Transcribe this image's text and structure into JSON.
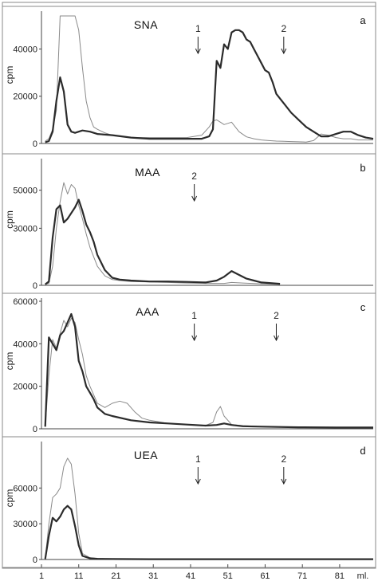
{
  "chart_data": {
    "type": "line",
    "x_tick_labels": [
      "1",
      "11",
      "21",
      "31",
      "41",
      "51",
      "61",
      "71",
      "81"
    ],
    "x_unit_label": "ml.",
    "xlim": [
      1,
      90
    ],
    "panels": [
      {
        "letter": "a",
        "title": "SNA",
        "ylabel": "cpm",
        "yticks": [
          0,
          20000,
          40000
        ],
        "ylim": [
          0,
          54000
        ],
        "arrows": [
          {
            "label": "1",
            "x": 43
          },
          {
            "label": "2",
            "x": 66
          }
        ],
        "series": [
          {
            "style": "thin",
            "x": [
              2,
              3,
              4,
              5,
              6,
              7,
              8,
              9,
              10,
              11,
              12,
              13,
              14,
              15,
              16,
              18,
              20,
              25,
              30,
              35,
              40,
              44,
              46,
              47,
              48,
              49,
              50,
              51,
              52,
              54,
              56,
              58,
              60,
              62,
              64,
              66,
              68,
              70,
              72,
              74,
              76,
              78,
              80,
              82,
              84,
              86,
              88,
              90
            ],
            "y": [
              1000,
              2000,
              6000,
              14000,
              54000,
              54000,
              54000,
              54000,
              54000,
              48000,
              32000,
              18000,
              11000,
              7000,
              6000,
              4500,
              3500,
              2500,
              2500,
              2500,
              2500,
              3500,
              7000,
              9500,
              10000,
              9000,
              8000,
              8500,
              9000,
              5000,
              2800,
              2000,
              1500,
              1200,
              1000,
              900,
              800,
              700,
              600,
              1200,
              4000,
              3500,
              2500,
              2000,
              2000,
              1500,
              1500,
              1500
            ]
          },
          {
            "style": "bold",
            "x": [
              2,
              3,
              4,
              5,
              6,
              7,
              8,
              9,
              10,
              11,
              12,
              14,
              16,
              20,
              25,
              30,
              35,
              40,
              44,
              46,
              47,
              48,
              49,
              50,
              51,
              52,
              53,
              54,
              55,
              56,
              57,
              58,
              59,
              60,
              61,
              62,
              63,
              64,
              66,
              68,
              70,
              72,
              74,
              76,
              78,
              80,
              82,
              84,
              86,
              88,
              90
            ],
            "y": [
              500,
              1000,
              5000,
              18000,
              28000,
              22000,
              8000,
              5000,
              4500,
              5000,
              5500,
              5000,
              4000,
              3500,
              2500,
              2000,
              2000,
              2000,
              2000,
              3000,
              6000,
              35000,
              32000,
              42000,
              40000,
              47000,
              48000,
              48000,
              47000,
              44000,
              43000,
              40000,
              37000,
              34000,
              31000,
              30000,
              26000,
              21000,
              17000,
              13000,
              10000,
              7000,
              5000,
              3000,
              3000,
              4000,
              5000,
              5000,
              3500,
              2500,
              2000
            ]
          }
        ]
      },
      {
        "letter": "b",
        "title": "MAA",
        "ylabel": "cpm",
        "yticks": [
          0,
          30000,
          50000
        ],
        "ylim": [
          0,
          62000
        ],
        "arrows": [
          {
            "label": "2",
            "x": 42
          }
        ],
        "series": [
          {
            "style": "thin",
            "x": [
              2,
              3,
              4,
              5,
              6,
              7,
              8,
              9,
              10,
              11,
              12,
              13,
              14,
              16,
              18,
              20,
              22,
              25,
              30,
              35,
              40,
              45,
              50,
              52,
              55,
              60,
              65
            ],
            "y": [
              500,
              1000,
              10000,
              30000,
              44000,
              54000,
              48000,
              53000,
              51000,
              42000,
              35000,
              27000,
              20000,
              10000,
              5000,
              3000,
              2500,
              2000,
              1800,
              1500,
              1200,
              1000,
              1000,
              1500,
              1200,
              800,
              500
            ]
          },
          {
            "style": "bold",
            "x": [
              2,
              3,
              4,
              5,
              6,
              7,
              8,
              9,
              10,
              11,
              12,
              13,
              14,
              15,
              16,
              18,
              20,
              22,
              25,
              30,
              35,
              40,
              45,
              48,
              50,
              52,
              54,
              56,
              58,
              60,
              65
            ],
            "y": [
              500,
              2000,
              25000,
              40000,
              42000,
              33000,
              35000,
              38000,
              41000,
              45000,
              39000,
              32000,
              28000,
              23000,
              16000,
              8000,
              4000,
              3000,
              2500,
              2000,
              2000,
              1800,
              1500,
              2500,
              4500,
              7500,
              5500,
              3500,
              2500,
              1500,
              800
            ]
          }
        ]
      },
      {
        "letter": "c",
        "title": "AAA",
        "ylabel": "cpm",
        "yticks": [
          0,
          20000,
          40000,
          60000
        ],
        "ylim": [
          0,
          60000
        ],
        "arrows": [
          {
            "label": "1",
            "x": 42
          },
          {
            "label": "2",
            "x": 64
          }
        ],
        "series": [
          {
            "style": "thin",
            "x": [
              2,
              3,
              4,
              5,
              6,
              7,
              8,
              9,
              10,
              11,
              12,
              13,
              14,
              16,
              18,
              20,
              22,
              24,
              26,
              28,
              30,
              35,
              40,
              45,
              47,
              48,
              49,
              50,
              52,
              55,
              60,
              70,
              80,
              90
            ],
            "y": [
              1000,
              25000,
              42000,
              38000,
              45000,
              51000,
              48000,
              52000,
              50000,
              42000,
              35000,
              25000,
              20000,
              12000,
              10000,
              12000,
              13000,
              12000,
              8000,
              5000,
              4000,
              2500,
              2000,
              1500,
              3000,
              8000,
              10500,
              6000,
              2000,
              1500,
              1000,
              800,
              700,
              700
            ]
          },
          {
            "style": "bold",
            "x": [
              2,
              3,
              4,
              5,
              6,
              7,
              8,
              9,
              10,
              11,
              12,
              13,
              14,
              15,
              16,
              18,
              20,
              25,
              30,
              35,
              40,
              45,
              48,
              50,
              52,
              55,
              60,
              70,
              80,
              90
            ],
            "y": [
              1000,
              43000,
              40000,
              37000,
              44000,
              46000,
              50000,
              54000,
              48000,
              32000,
              27000,
              20000,
              17000,
              14000,
              10000,
              7000,
              6000,
              4000,
              3000,
              2500,
              2000,
              1500,
              1800,
              2500,
              1800,
              1200,
              1000,
              700,
              600,
              600
            ]
          }
        ]
      },
      {
        "letter": "d",
        "title": "UEA",
        "ylabel": "cpm",
        "yticks": [
          0,
          30000,
          60000
        ],
        "ylim": [
          0,
          95000
        ],
        "arrows": [
          {
            "label": "1",
            "x": 43
          },
          {
            "label": "2",
            "x": 66
          }
        ],
        "series": [
          {
            "style": "thin",
            "x": [
              2,
              3,
              4,
              5,
              6,
              7,
              8,
              9,
              10,
              11,
              12,
              14,
              16,
              20,
              30,
              50,
              70,
              90
            ],
            "y": [
              500,
              30000,
              52000,
              55000,
              60000,
              78000,
              85000,
              80000,
              55000,
              22000,
              5000,
              1500,
              800,
              500,
              400,
              400,
              400,
              400
            ]
          },
          {
            "style": "bold",
            "x": [
              2,
              3,
              4,
              5,
              6,
              7,
              8,
              9,
              10,
              11,
              12,
              14,
              16,
              20,
              30,
              50,
              70,
              90
            ],
            "y": [
              500,
              20000,
              35000,
              32000,
              36000,
              42000,
              45000,
              42000,
              28000,
              12000,
              3000,
              1000,
              600,
              400,
              300,
              300,
              300,
              300
            ]
          }
        ]
      }
    ]
  }
}
